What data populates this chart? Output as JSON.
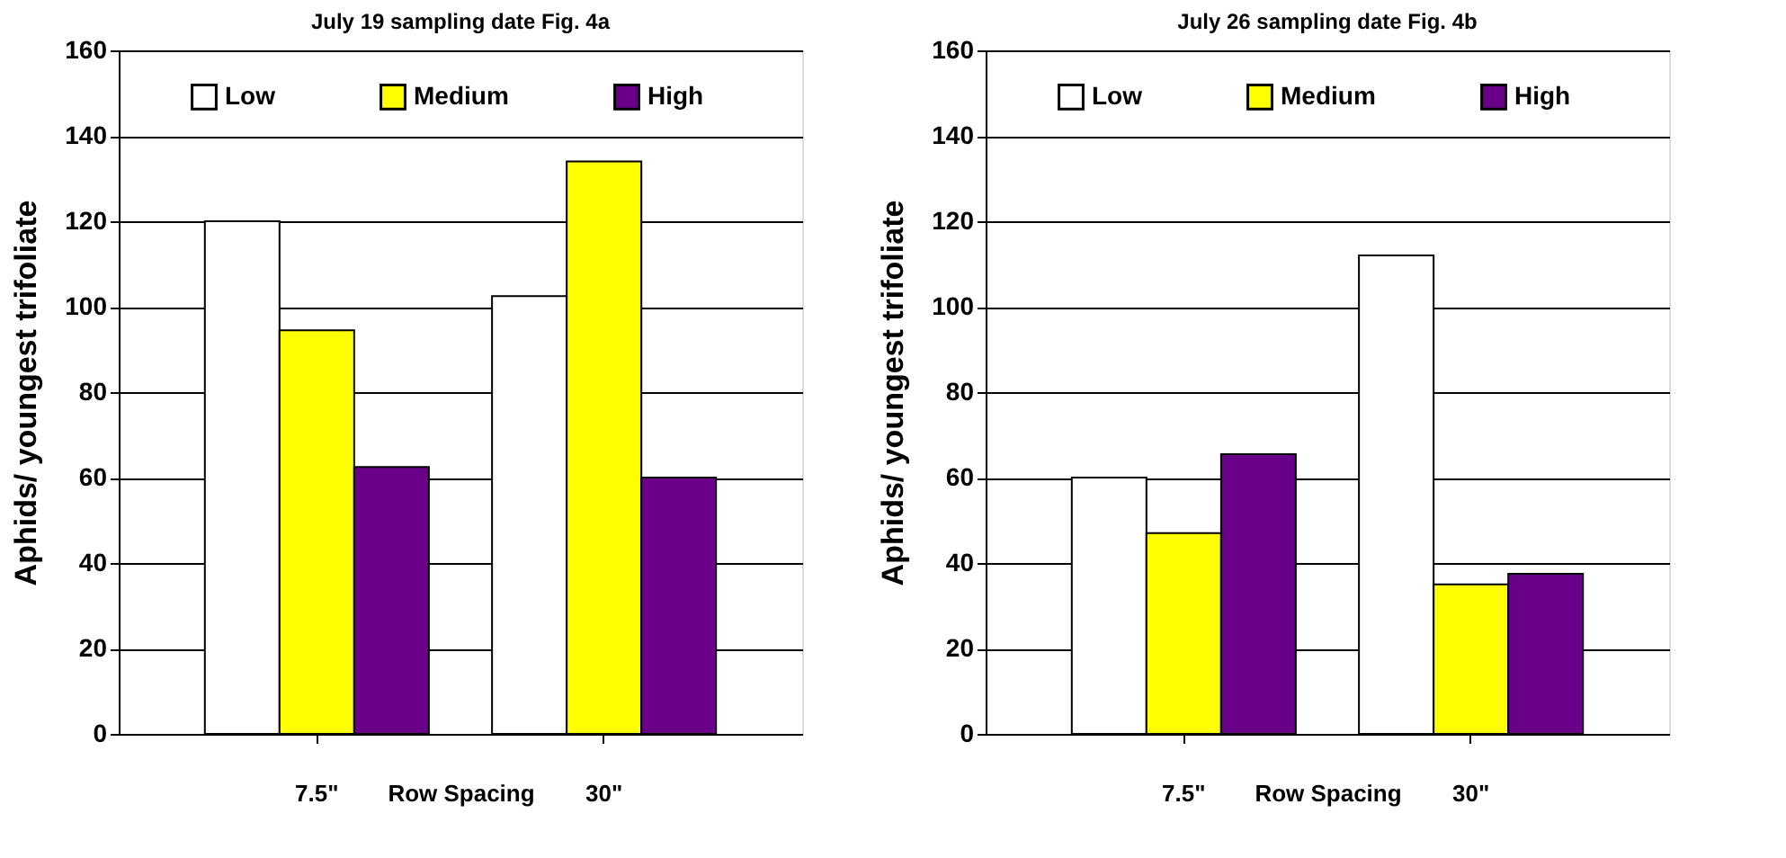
{
  "chart_data": [
    {
      "type": "bar",
      "title": "July 19 sampling date Fig. 4a",
      "xlabel": "Row Spacing",
      "ylabel": "Aphids/ youngest trifoliate",
      "categories": [
        "7.5\"",
        "30\""
      ],
      "series": [
        {
          "name": "Low",
          "color": "#ffffff",
          "values": [
            120,
            102.5
          ]
        },
        {
          "name": "Medium",
          "color": "#ffff00",
          "values": [
            94.5,
            134
          ]
        },
        {
          "name": "High",
          "color": "#6a008a",
          "values": [
            62.5,
            60
          ]
        }
      ],
      "ylim": [
        0,
        160
      ],
      "yticks": [
        0,
        20,
        40,
        60,
        80,
        100,
        120,
        140,
        160
      ],
      "grid": "y",
      "legend": "top"
    },
    {
      "type": "bar",
      "title": "July 26 sampling date Fig. 4b",
      "xlabel": "Row Spacing",
      "ylabel": "Aphids/ youngest trifoliate",
      "categories": [
        "7.5\"",
        "30\""
      ],
      "series": [
        {
          "name": "Low",
          "color": "#ffffff",
          "values": [
            60,
            112
          ]
        },
        {
          "name": "Medium",
          "color": "#ffff00",
          "values": [
            47,
            35
          ]
        },
        {
          "name": "High",
          "color": "#6a008a",
          "values": [
            65.5,
            37.5
          ]
        }
      ],
      "ylim": [
        0,
        160
      ],
      "yticks": [
        0,
        20,
        40,
        60,
        80,
        100,
        120,
        140,
        160
      ],
      "grid": "y",
      "legend": "top"
    }
  ]
}
